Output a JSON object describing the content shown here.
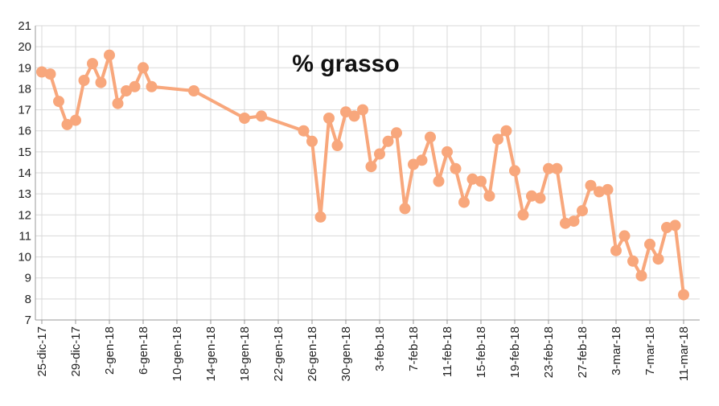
{
  "chart_data": {
    "type": "line",
    "title": "% grasso",
    "xlabel": "",
    "ylabel": "",
    "ylim": [
      7,
      21
    ],
    "yticks": [
      7,
      8,
      9,
      10,
      11,
      12,
      13,
      14,
      15,
      16,
      17,
      18,
      19,
      20,
      21
    ],
    "xlim": [
      "2017-12-25",
      "2018-03-11"
    ],
    "xtick_labels": [
      "25-dic-17",
      "29-dic-17",
      "2-gen-18",
      "6-gen-18",
      "10-gen-18",
      "14-gen-18",
      "18-gen-18",
      "22-gen-18",
      "26-gen-18",
      "30-gen-18",
      "3-feb-18",
      "7-feb-18",
      "11-feb-18",
      "15-feb-18",
      "19-feb-18",
      "23-feb-18",
      "27-feb-18",
      "3-mar-18",
      "7-mar-18",
      "11-mar-18"
    ],
    "grid": true,
    "legend": false,
    "color": "#f8a77c",
    "series": [
      {
        "x": [
          "2017-12-25",
          "2017-12-26",
          "2017-12-27",
          "2017-12-28",
          "2017-12-29",
          "2017-12-30",
          "2017-12-31",
          "2018-01-01",
          "2018-01-02",
          "2018-01-03",
          "2018-01-04",
          "2018-01-05",
          "2018-01-06",
          "2018-01-07",
          "2018-01-12",
          "2018-01-18",
          "2018-01-20",
          "2018-01-25",
          "2018-01-26",
          "2018-01-27",
          "2018-01-28",
          "2018-01-29",
          "2018-01-30",
          "2018-01-31",
          "2018-02-01",
          "2018-02-02",
          "2018-02-03",
          "2018-02-04",
          "2018-02-05",
          "2018-02-06",
          "2018-02-07",
          "2018-02-08",
          "2018-02-09",
          "2018-02-10",
          "2018-02-11",
          "2018-02-12",
          "2018-02-13",
          "2018-02-14",
          "2018-02-15",
          "2018-02-16",
          "2018-02-17",
          "2018-02-18",
          "2018-02-19",
          "2018-02-20",
          "2018-02-21",
          "2018-02-22",
          "2018-02-23",
          "2018-02-24",
          "2018-02-25",
          "2018-02-26",
          "2018-02-27",
          "2018-02-28",
          "2018-03-01",
          "2018-03-02",
          "2018-03-03",
          "2018-03-04",
          "2018-03-05",
          "2018-03-06",
          "2018-03-07",
          "2018-03-08",
          "2018-03-09",
          "2018-03-10"
        ],
        "values": [
          18.8,
          18.7,
          17.4,
          16.3,
          16.5,
          18.4,
          19.2,
          18.3,
          19.6,
          17.3,
          17.9,
          18.1,
          19.0,
          18.1,
          17.9,
          16.6,
          16.7,
          16.0,
          15.5,
          11.9,
          16.6,
          15.3,
          16.9,
          16.7,
          17.0,
          14.3,
          14.9,
          15.5,
          15.9,
          12.3,
          14.4,
          14.6,
          15.7,
          13.6,
          15.0,
          14.2,
          12.6,
          13.7,
          13.6,
          12.9,
          15.6,
          16.0,
          14.1,
          12.0,
          12.9,
          12.8,
          14.2,
          14.2,
          11.6,
          11.7,
          12.2,
          13.4,
          13.1,
          13.2,
          10.3,
          11.0,
          9.8,
          9.1,
          10.6,
          9.9,
          11.4,
          11.5
        ]
      }
    ],
    "last_point": {
      "x": "2018-03-11",
      "value": 8.2
    }
  }
}
